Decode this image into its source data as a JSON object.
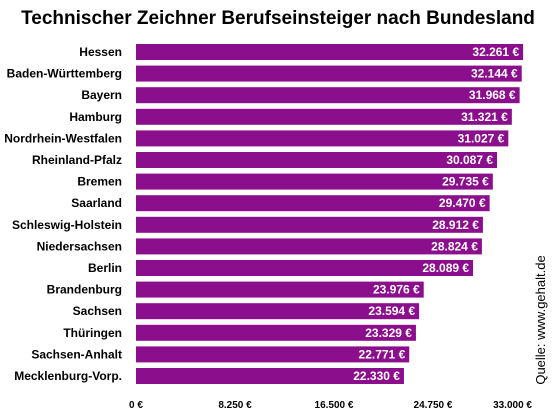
{
  "chart_data": {
    "type": "bar",
    "orientation": "horizontal",
    "title": "Technischer Zeichner Berufseinsteiger nach Bundesland",
    "categories": [
      "Hessen",
      "Baden-Württemberg",
      "Bayern",
      "Hamburg",
      "Nordrhein-Westfalen",
      "Rheinland-Pfalz",
      "Bremen",
      "Saarland",
      "Schleswig-Holstein",
      "Niedersachsen",
      "Berlin",
      "Brandenburg",
      "Sachsen",
      "Thüringen",
      "Sachsen-Anhalt",
      "Mecklenburg-Vorp."
    ],
    "values": [
      32261,
      32144,
      31968,
      31321,
      31027,
      30087,
      29735,
      29470,
      28912,
      28824,
      28089,
      23976,
      23594,
      23329,
      22771,
      22330
    ],
    "value_labels": [
      "32.261 €",
      "32.144 €",
      "31.968 €",
      "31.321 €",
      "31.027 €",
      "30.087 €",
      "29.735 €",
      "29.470 €",
      "28.912 €",
      "28.824 €",
      "28.089 €",
      "23.976 €",
      "23.594 €",
      "23.329 €",
      "22.771 €",
      "22.330 €"
    ],
    "xlim": [
      0,
      33000
    ],
    "xticks": [
      0,
      8250,
      16500,
      24750,
      33000
    ],
    "xtick_labels": [
      "0 €",
      "8.250 €",
      "16.500 €",
      "24.750 €",
      "33.000 €"
    ],
    "grid": false,
    "bar_color": "#8B0F8C",
    "source": "Quelle: www.gehalt.de"
  }
}
